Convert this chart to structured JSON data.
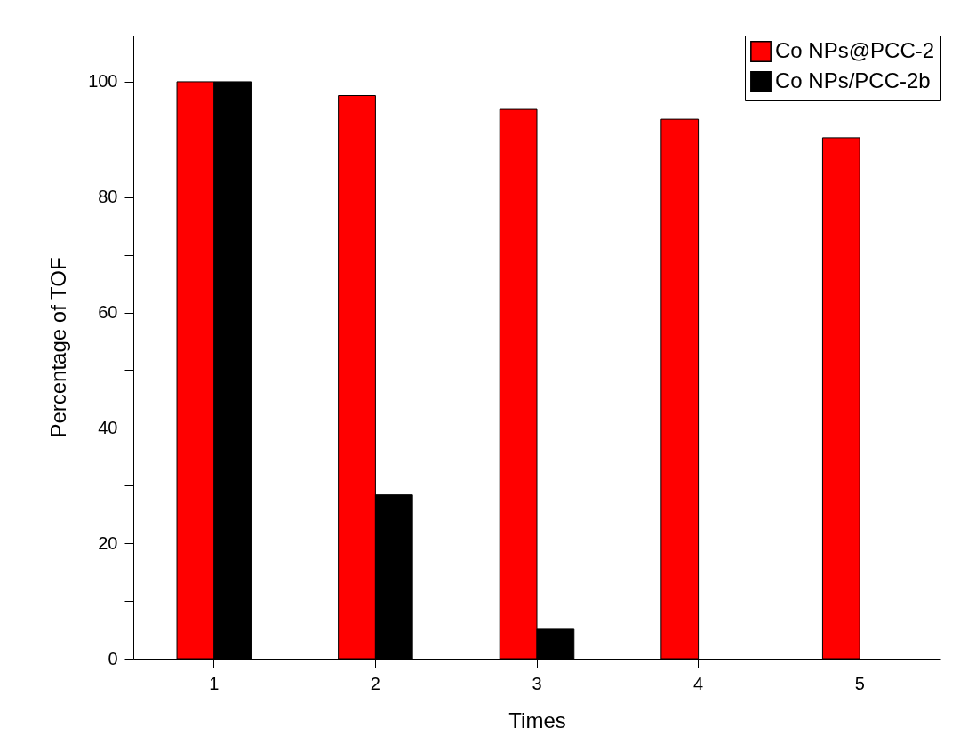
{
  "chart_data": {
    "type": "bar",
    "xlabel": "Times",
    "ylabel": "Percentage of TOF",
    "categories": [
      "1",
      "2",
      "3",
      "4",
      "5"
    ],
    "series": [
      {
        "name": "Co NPs@PCC-2",
        "color": "#ff0000",
        "values": [
          100,
          97.6,
          95.2,
          93.5,
          90.3
        ]
      },
      {
        "name": "Co NPs/PCC-2b",
        "color": "#000000",
        "values": [
          100,
          28.4,
          5.1,
          null,
          null
        ]
      }
    ],
    "ylim": [
      0,
      108
    ],
    "yticks": [
      0,
      {
        "value": 10,
        "label": null
      },
      20,
      {
        "value": 30,
        "label": null
      },
      40,
      {
        "value": 50,
        "label": null
      },
      60,
      {
        "value": 70,
        "label": null
      },
      80,
      {
        "value": 90,
        "label": null
      },
      100
    ],
    "grid": false,
    "legend": "top right"
  }
}
